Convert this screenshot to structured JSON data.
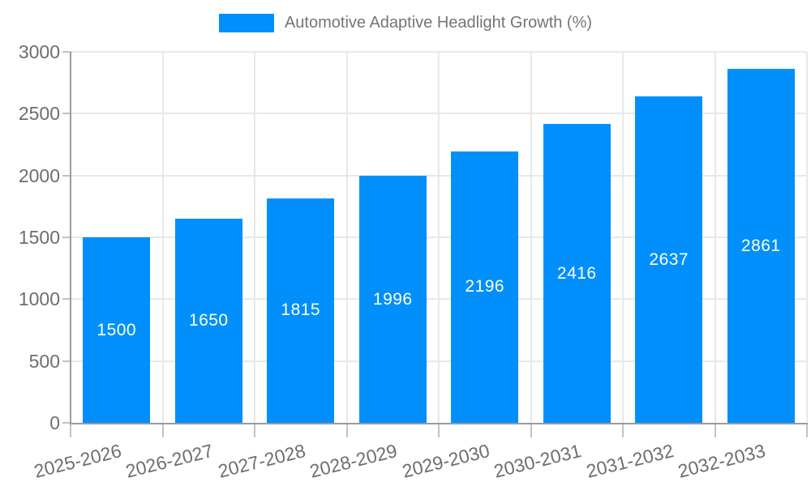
{
  "legend": {
    "label": "Automotive Adaptive Headlight Growth (%)"
  },
  "chart_data": {
    "type": "bar",
    "title": "Automotive Adaptive Headlight Growth (%)",
    "categories": [
      "2025-2026",
      "2026-2027",
      "2027-2028",
      "2028-2029",
      "2029-2030",
      "2030-2031",
      "2031-2032",
      "2032-2033"
    ],
    "values": [
      1500,
      1650,
      1815,
      1996,
      2196,
      2416,
      2637,
      2861
    ],
    "xlabel": "",
    "ylabel": "",
    "ylim": [
      0,
      3000
    ],
    "y_ticks": [
      0,
      500,
      1000,
      1500,
      2000,
      2500,
      3000
    ],
    "grid": true,
    "legend_position": "top",
    "value_label_position": "inside-center"
  },
  "colors": {
    "bar": "#008FFB",
    "value_label": "#FFFFFF",
    "axis_text": "#6E6E6E",
    "legend_text": "#757575",
    "grid_line": "#E8E8E8",
    "tick": "#C2C2C2",
    "axis_line": "#9B9B9B",
    "background": "#FFFFFF"
  }
}
